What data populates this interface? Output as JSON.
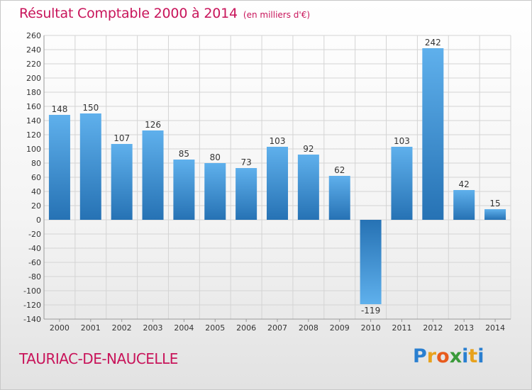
{
  "title": "Résultat Comptable 2000 à 2014",
  "subtitle": "(en milliers d'€)",
  "town": "TAURIAC-DE-NAUCELLE",
  "logo": {
    "letters": [
      "P",
      "r",
      "o",
      "x",
      "i",
      "t",
      "i"
    ]
  },
  "colors": {
    "title": "#c8145a",
    "bar_light": "#5fb0ec",
    "bar_dark": "#2672b4",
    "grid": "#d4d4d4",
    "axis_text": "#333333"
  },
  "chart_data": {
    "type": "bar",
    "categories": [
      "2000",
      "2001",
      "2002",
      "2003",
      "2004",
      "2005",
      "2006",
      "2007",
      "2008",
      "2009",
      "2010",
      "2011",
      "2012",
      "2013",
      "2014"
    ],
    "values": [
      148,
      150,
      107,
      126,
      85,
      80,
      73,
      103,
      92,
      62,
      -119,
      103,
      242,
      42,
      15
    ],
    "data_labels": [
      "148",
      "150",
      "107",
      "126",
      "85",
      "80",
      "73",
      "103",
      "92",
      "62",
      "-119",
      "103",
      "242",
      "42",
      "15"
    ],
    "ylim": [
      -140,
      260
    ],
    "yticks": [
      260,
      240,
      220,
      200,
      180,
      160,
      140,
      120,
      100,
      80,
      60,
      40,
      20,
      0,
      -20,
      -40,
      -60,
      -80,
      -100,
      -120,
      -140
    ],
    "grid": true
  }
}
